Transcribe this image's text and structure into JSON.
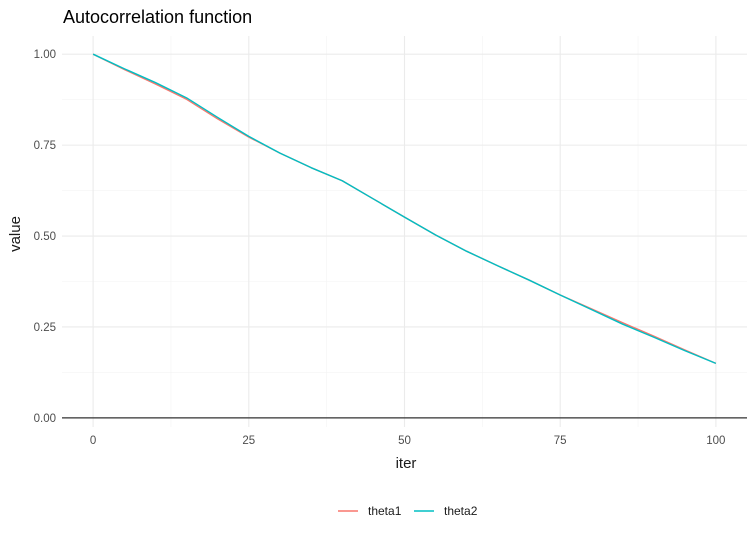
{
  "chart_data": {
    "type": "line",
    "title": "Autocorrelation function",
    "xlabel": "iter",
    "ylabel": "value",
    "xlim": [
      -5,
      105
    ],
    "ylim": [
      -0.025,
      1.05
    ],
    "x_ticks": [
      0,
      25,
      50,
      75,
      100
    ],
    "y_ticks": [
      0.0,
      0.25,
      0.5,
      0.75,
      1.0
    ],
    "y_tick_labels": [
      "0.00",
      "0.25",
      "0.50",
      "0.75",
      "1.00"
    ],
    "x_tick_labels": [
      "0",
      "25",
      "50",
      "75",
      "100"
    ],
    "hline": 0,
    "grid": true,
    "legend": "bottom",
    "x": [
      0,
      5,
      10,
      15,
      20,
      25,
      30,
      35,
      40,
      45,
      50,
      55,
      60,
      65,
      70,
      75,
      80,
      85,
      90,
      95,
      100
    ],
    "series": [
      {
        "name": "theta1",
        "color": "#F8766D",
        "values": [
          1.0,
          0.958,
          0.918,
          0.876,
          0.822,
          0.772,
          0.728,
          0.688,
          0.652,
          0.602,
          0.552,
          0.503,
          0.458,
          0.418,
          0.379,
          0.338,
          0.3,
          0.262,
          0.225,
          0.187,
          0.15
        ]
      },
      {
        "name": "theta2",
        "color": "#00BFC4",
        "values": [
          1.0,
          0.96,
          0.922,
          0.88,
          0.826,
          0.774,
          0.728,
          0.688,
          0.652,
          0.602,
          0.552,
          0.503,
          0.458,
          0.418,
          0.379,
          0.338,
          0.298,
          0.258,
          0.222,
          0.185,
          0.15
        ]
      }
    ]
  }
}
